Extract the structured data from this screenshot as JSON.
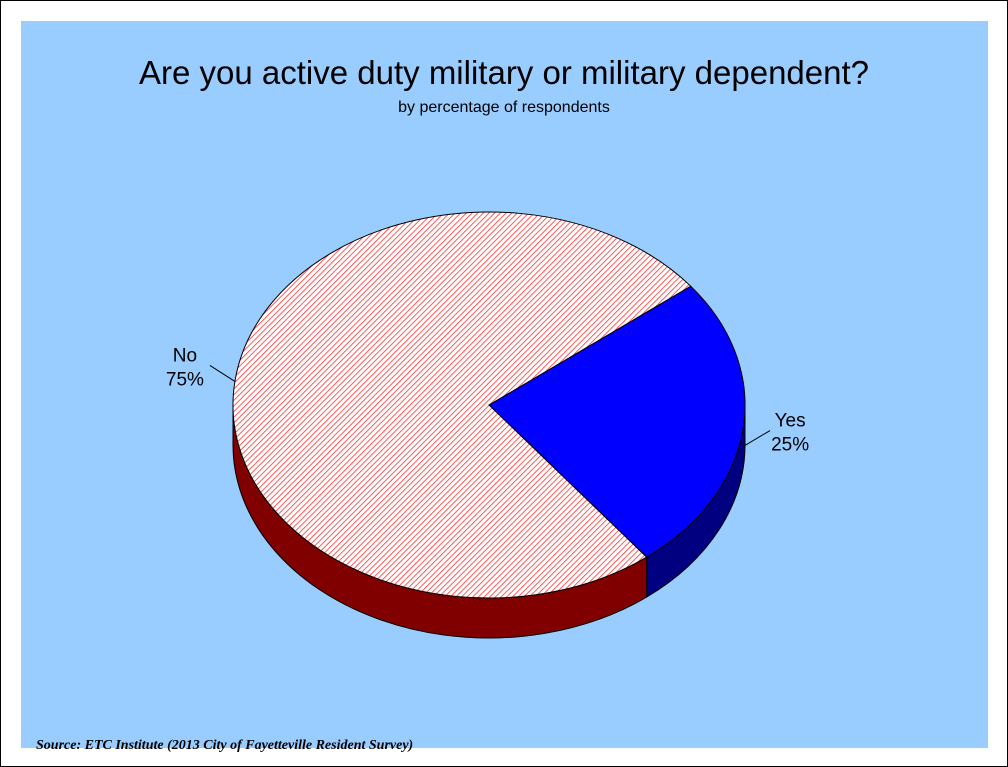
{
  "chart_data": {
    "type": "pie",
    "title": "Are you active duty military or military dependent?",
    "subtitle": "by percentage of respondents",
    "slices": [
      {
        "label": "Yes",
        "value": 25,
        "display": "25%",
        "color": "#0000ff",
        "side_color": "#000080"
      },
      {
        "label": "No",
        "value": 75,
        "display": "75%",
        "color": "#ff9999",
        "side_color": "#800000"
      }
    ],
    "source": "Source:  ETC Institute (2013 City of Fayetteville Resident Survey)",
    "background_color": "#99ccff"
  }
}
